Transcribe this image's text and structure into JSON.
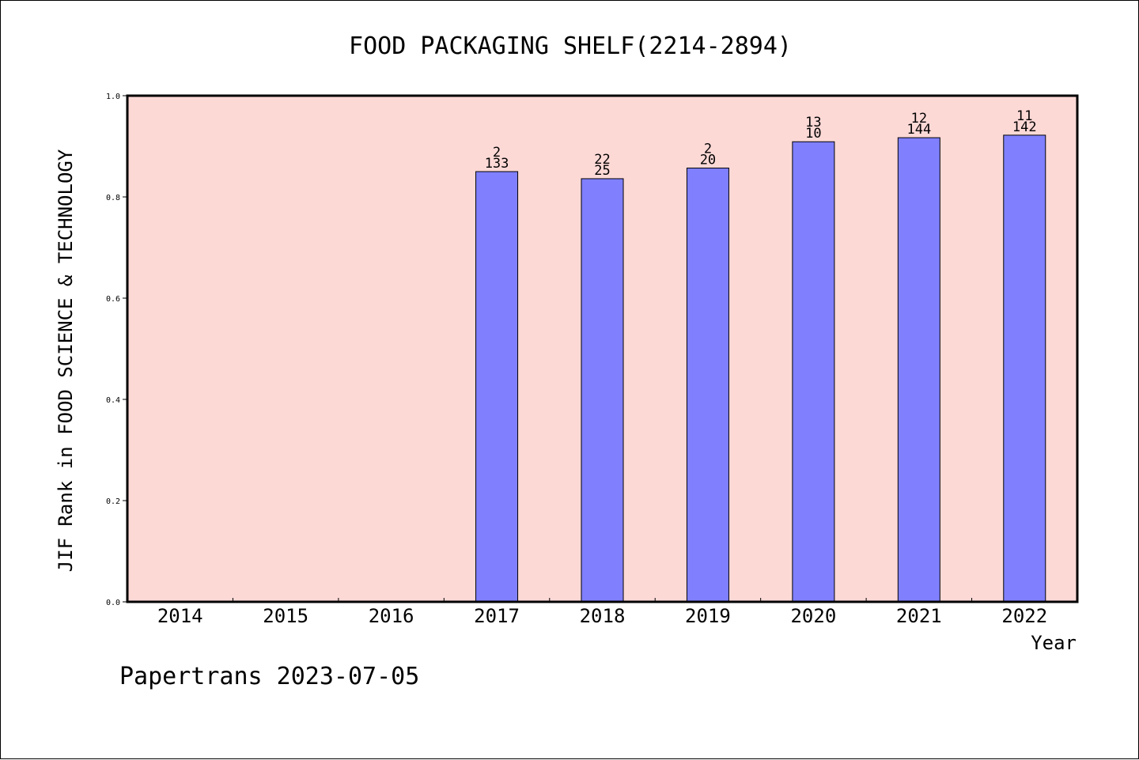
{
  "chart_data": {
    "type": "bar",
    "title": "FOOD PACKAGING SHELF(2214-2894)",
    "xlabel": "Year",
    "ylabel": "JIF Rank in FOOD SCIENCE & TECHNOLOGY",
    "categories": [
      "2014",
      "2015",
      "2016",
      "2017",
      "2018",
      "2019",
      "2020",
      "2021",
      "2022"
    ],
    "values": [
      null,
      null,
      null,
      0.85,
      0.836,
      0.857,
      0.909,
      0.917,
      0.922
    ],
    "labels": [
      [
        "",
        ""
      ],
      [
        "",
        ""
      ],
      [
        "",
        ""
      ],
      [
        "2",
        "133"
      ],
      [
        "22",
        "25"
      ],
      [
        "2",
        "20"
      ],
      [
        "13",
        "10"
      ],
      [
        "12",
        "144"
      ],
      [
        "11",
        "142"
      ]
    ],
    "ylim": [
      0,
      1.0
    ],
    "yticks": [
      "0.0",
      "0.2",
      "0.4",
      "0.6",
      "0.8",
      "1.0"
    ],
    "grid": false,
    "colors": {
      "plot_background": "#fdd9d6",
      "bar_fill": "#8080ff",
      "bar_stroke": "#000000",
      "axis": "#000000"
    },
    "footer": "Papertrans 2023-07-05"
  }
}
